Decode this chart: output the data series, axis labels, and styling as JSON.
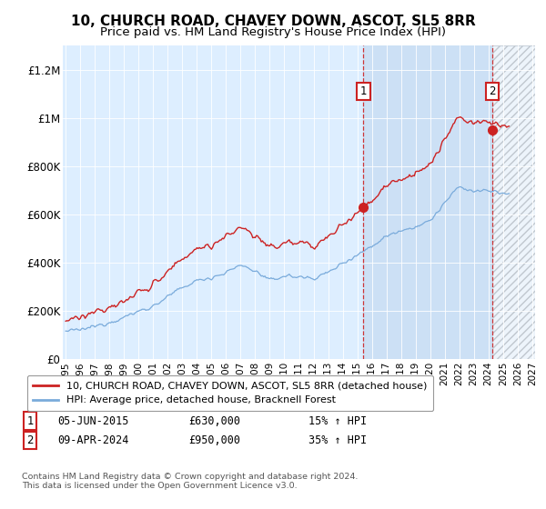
{
  "title": "10, CHURCH ROAD, CHAVEY DOWN, ASCOT, SL5 8RR",
  "subtitle": "Price paid vs. HM Land Registry's House Price Index (HPI)",
  "ylim": [
    0,
    1300000
  ],
  "yticks": [
    0,
    200000,
    400000,
    600000,
    800000,
    1000000,
    1200000
  ],
  "ytick_labels": [
    "£0",
    "£200K",
    "£400K",
    "£600K",
    "£800K",
    "£1M",
    "£1.2M"
  ],
  "hpi_color": "#7aabdb",
  "price_color": "#cc2222",
  "transaction1": {
    "date": "05-JUN-2015",
    "price": 630000,
    "hpi_pct": "15%",
    "label": "1"
  },
  "transaction2": {
    "date": "09-APR-2024",
    "price": 950000,
    "hpi_pct": "35%",
    "label": "2"
  },
  "transaction1_x": 2015.43,
  "transaction2_x": 2024.27,
  "legend_line1": "10, CHURCH ROAD, CHAVEY DOWN, ASCOT, SL5 8RR (detached house)",
  "legend_line2": "HPI: Average price, detached house, Bracknell Forest",
  "footnote": "Contains HM Land Registry data © Crown copyright and database right 2024.\nThis data is licensed under the Open Government Licence v3.0.",
  "background_main": "#ddeeff",
  "shade_color": "#cce0f5",
  "grid_color": "#ffffff",
  "title_fontsize": 11,
  "subtitle_fontsize": 9.5,
  "xstart": 1995,
  "xend": 2027
}
